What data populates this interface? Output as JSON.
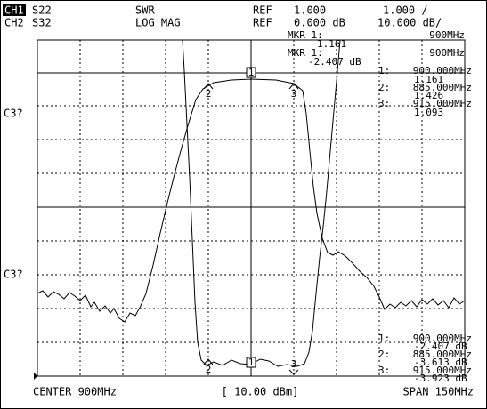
{
  "header": {
    "ch1": {
      "label": "CH1",
      "param": "S22",
      "format": "SWR",
      "ref_label": "REF",
      "ref": "1.000",
      "scale": "1.000 /"
    },
    "ch2": {
      "label": "CH2",
      "param": "S32",
      "format": "LOG MAG",
      "ref_label": "REF",
      "ref": "0.000 dB",
      "scale": "10.000 dB/"
    }
  },
  "marker_top": {
    "ch1": {
      "label": "MKR 1:",
      "value": "1.161",
      "freq": "900MHz"
    },
    "ch2": {
      "label": "MKR 1:",
      "value": "-2.407 dB",
      "freq": "900MHz"
    }
  },
  "side_labels": [
    "C3?",
    "C3?"
  ],
  "marker_list_upper": [
    {
      "index": "1:",
      "freq": "900.000MHz",
      "value": "1.161"
    },
    {
      "index": "2:",
      "freq": "885.000MHz",
      "value": "1.426"
    },
    {
      "index": "3:",
      "freq": "915.000MHz",
      "value": "1.093"
    }
  ],
  "marker_list_lower": [
    {
      "index": "1:",
      "freq": "900.000MHz",
      "value": "-2.407 dB"
    },
    {
      "index": "2:",
      "freq": "885.000MHz",
      "value": "-3.613 dB"
    },
    {
      "index": "3:",
      "freq": "915.000MHz",
      "value": "-3.923 dB"
    }
  ],
  "trace_markers_upper": [
    "1",
    "2",
    "3"
  ],
  "trace_markers_lower": [
    "1",
    "2",
    "3"
  ],
  "footer": {
    "center": "CENTER 900MHz",
    "power": "[ 10.00 dBm]",
    "span": "SPAN 150MHz"
  }
}
